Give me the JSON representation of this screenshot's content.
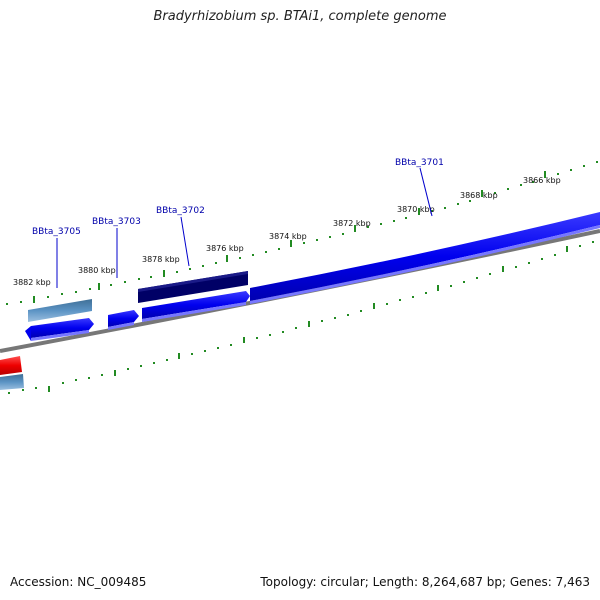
{
  "title": "Bradyrhizobium sp. BTAi1, complete genome",
  "footer": {
    "accession": "Accession: NC_009485",
    "summary": "Topology: circular; Length: 8,264,687 bp; Genes: 7,463"
  },
  "scale_labels": [
    "3882 kbp",
    "3880 kbp",
    "3878 kbp",
    "3876 kbp",
    "3874 kbp",
    "3872 kbp",
    "3870 kbp",
    "3868 kbp",
    "3866 kbp"
  ],
  "gene_labels": [
    "BBta_3705",
    "BBta_3703",
    "BBta_3702",
    "BBta_3701"
  ],
  "colors": {
    "forward_gene": "#0000ee",
    "feature_dark": "#000066",
    "feature_steel": "#4682b4",
    "feature_red": "#ee0000",
    "backbone": "#777777",
    "ticks": "#228b22",
    "label_text": "#0000aa"
  }
}
